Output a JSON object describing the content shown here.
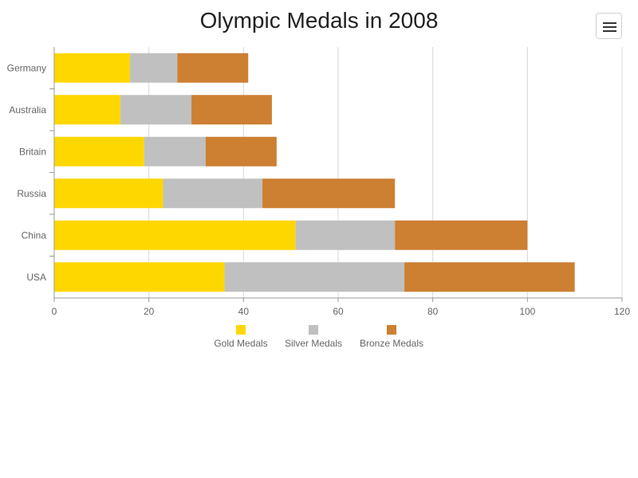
{
  "menu_icon": "hamburger-menu-icon",
  "chart_data": {
    "type": "bar",
    "orientation": "horizontal",
    "stacked": true,
    "title": "Olympic Medals in 2008",
    "categories": [
      "USA",
      "China",
      "Russia",
      "Britain",
      "Australia",
      "Germany"
    ],
    "series": [
      {
        "name": "Gold Medals",
        "color": "#FFD700",
        "values": [
          36,
          51,
          23,
          19,
          14,
          16
        ]
      },
      {
        "name": "Silver Medals",
        "color": "#C0C0C0",
        "values": [
          38,
          21,
          21,
          13,
          15,
          10
        ]
      },
      {
        "name": "Bronze Medals",
        "color": "#CD7F32",
        "values": [
          36,
          28,
          28,
          15,
          17,
          15
        ]
      }
    ],
    "xlim": [
      0,
      120
    ],
    "x_ticks": [
      "0",
      "20",
      "40",
      "60",
      "80",
      "100",
      "120"
    ],
    "grid": true,
    "legend_position": "bottom"
  }
}
